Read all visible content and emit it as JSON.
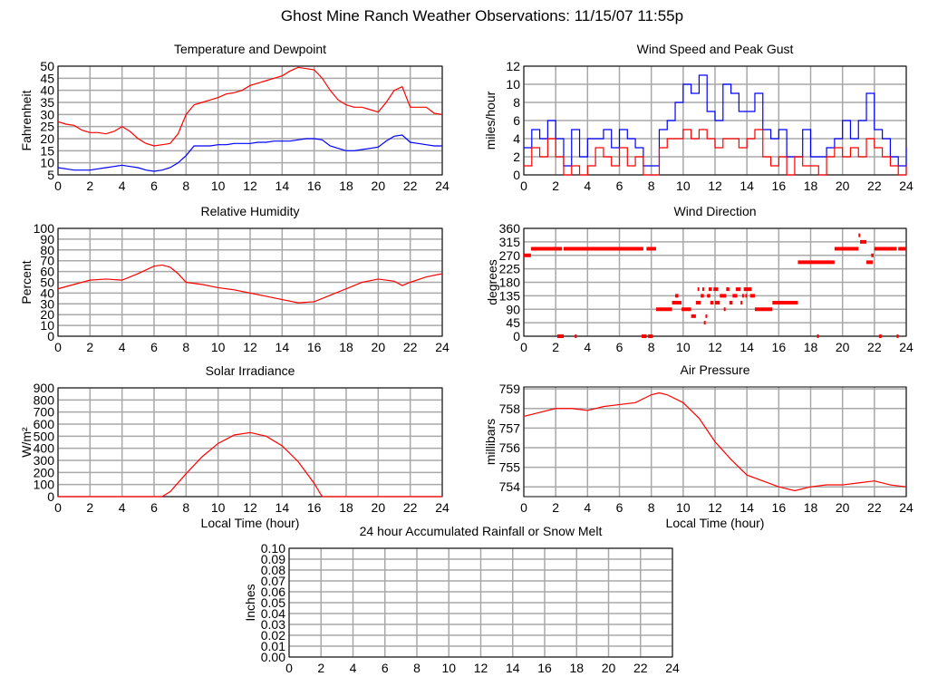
{
  "page_title": "Ghost Mine Ranch Weather Observations: 11/15/07 11:55p",
  "chart_data": [
    {
      "id": "temp",
      "type": "line",
      "title": "Temperature and Dewpoint",
      "ylabel": "Fahrenheit",
      "xlabel": "",
      "xlim": [
        0,
        24
      ],
      "ylim": [
        5,
        50
      ],
      "yticks": [
        5,
        10,
        15,
        20,
        25,
        30,
        35,
        40,
        45,
        50
      ],
      "xticks": [
        0,
        2,
        4,
        6,
        8,
        10,
        12,
        14,
        16,
        18,
        20,
        22,
        24
      ],
      "grid": true,
      "legend": "none",
      "x": [
        0,
        0.5,
        1,
        1.5,
        2,
        2.5,
        3,
        3.5,
        4,
        4.5,
        5,
        5.5,
        6,
        6.5,
        7,
        7.5,
        8,
        8.5,
        9,
        9.5,
        10,
        10.5,
        11,
        11.5,
        12,
        12.5,
        13,
        13.5,
        14,
        14.5,
        15,
        15.5,
        16,
        16.5,
        17,
        17.5,
        18,
        18.5,
        19,
        19.5,
        20,
        20.5,
        21,
        21.5,
        22,
        22.5,
        23,
        23.5,
        24
      ],
      "series": [
        {
          "color": "#ff0000",
          "step": false,
          "values": [
            27,
            26,
            25.5,
            23.5,
            22.5,
            22.5,
            22,
            23,
            25,
            23,
            20,
            18,
            17,
            17.5,
            18,
            22,
            30,
            34,
            35,
            36,
            37,
            38.5,
            39,
            40,
            42,
            43,
            44,
            45,
            46,
            48,
            49.5,
            49,
            48.5,
            45,
            40,
            36,
            34,
            33,
            33,
            32,
            31,
            35,
            40,
            41.5,
            33,
            33,
            33,
            30.5,
            30
          ]
        },
        {
          "color": "#0000ff",
          "step": false,
          "values": [
            8,
            7.5,
            7,
            7,
            7,
            7.5,
            8,
            8.5,
            9,
            8.5,
            8,
            7,
            6.5,
            7,
            8,
            10,
            13,
            17,
            17,
            17,
            17.5,
            17.5,
            18,
            18,
            18,
            18.5,
            18.5,
            19,
            19,
            19,
            19.5,
            20,
            20,
            19.5,
            17,
            16,
            15,
            15,
            15.5,
            16,
            16.5,
            19,
            21,
            21.5,
            18.5,
            18,
            17.5,
            17,
            17
          ]
        }
      ]
    },
    {
      "id": "wind",
      "type": "line",
      "title": "Wind Speed and Peak Gust",
      "ylabel": "miles/hour",
      "xlabel": "",
      "xlim": [
        0,
        24
      ],
      "ylim": [
        0,
        12
      ],
      "yticks": [
        0,
        2,
        4,
        6,
        8,
        10,
        12
      ],
      "xticks": [
        0,
        2,
        4,
        6,
        8,
        10,
        12,
        14,
        16,
        18,
        20,
        22,
        24
      ],
      "grid": true,
      "legend": "none",
      "x": [
        0,
        0.5,
        1,
        1.5,
        2,
        2.5,
        3,
        3.5,
        4,
        4.5,
        5,
        5.5,
        6,
        6.5,
        7,
        7.5,
        8,
        8.5,
        9,
        9.5,
        10,
        10.5,
        11,
        11.5,
        12,
        12.5,
        13,
        13.5,
        14,
        14.5,
        15,
        15.5,
        16,
        16.5,
        17,
        17.5,
        18,
        18.5,
        19,
        19.5,
        20,
        20.5,
        21,
        21.5,
        22,
        22.5,
        23,
        23.5,
        24
      ],
      "series": [
        {
          "color": "#0000ff",
          "step": true,
          "values": [
            3,
            5,
            4,
            6,
            4,
            1,
            5,
            2,
            4,
            4,
            5,
            3,
            5,
            4,
            3,
            1,
            1,
            5,
            6,
            8,
            10,
            9,
            11,
            7,
            6,
            10,
            9,
            7,
            7,
            9,
            5,
            4,
            5,
            2,
            2,
            5,
            2,
            2,
            3,
            4,
            6,
            4,
            6,
            9,
            5,
            4,
            2,
            1,
            3
          ]
        },
        {
          "color": "#ff0000",
          "step": true,
          "values": [
            1,
            3,
            2,
            4,
            2,
            0,
            1,
            0,
            1,
            3,
            2,
            1,
            3,
            1,
            2,
            0,
            0,
            3,
            4,
            4,
            5,
            4,
            5,
            4,
            3,
            4,
            4,
            3,
            4,
            5,
            2,
            1,
            2,
            0,
            2,
            1,
            1,
            0,
            2,
            3,
            2,
            3,
            2,
            4,
            3,
            2,
            1,
            0,
            1
          ]
        }
      ]
    },
    {
      "id": "rh",
      "type": "line",
      "title": "Relative Humidity",
      "ylabel": "Percent",
      "xlabel": "",
      "xlim": [
        0,
        24
      ],
      "ylim": [
        0,
        100
      ],
      "yticks": [
        0,
        10,
        20,
        30,
        40,
        50,
        60,
        70,
        80,
        90,
        100
      ],
      "xticks": [
        0,
        2,
        4,
        6,
        8,
        10,
        12,
        14,
        16,
        18,
        20,
        22,
        24
      ],
      "grid": true,
      "legend": "none",
      "x": [
        0,
        1,
        2,
        3,
        4,
        5,
        6,
        6.5,
        7,
        7.5,
        8,
        9,
        10,
        11,
        12,
        13,
        14,
        15,
        16,
        17,
        18,
        19,
        20,
        21,
        21.5,
        22,
        23,
        24
      ],
      "series": [
        {
          "color": "#ff0000",
          "step": false,
          "values": [
            44,
            48,
            52,
            53,
            52,
            58,
            65,
            66,
            64,
            58,
            50,
            48,
            45,
            43,
            40,
            37,
            34,
            31,
            32,
            38,
            44,
            50,
            53,
            51,
            47,
            50,
            55,
            58
          ]
        }
      ]
    },
    {
      "id": "dir",
      "type": "scatter",
      "title": "Wind Direction",
      "ylabel": "degrees",
      "xlabel": "",
      "xlim": [
        0,
        24
      ],
      "ylim": [
        0,
        360
      ],
      "yticks": [
        0,
        45,
        90,
        135,
        180,
        225,
        270,
        315,
        360
      ],
      "xticks": [
        0,
        2,
        4,
        6,
        8,
        10,
        12,
        14,
        16,
        18,
        20,
        22,
        24
      ],
      "grid": true,
      "legend": "none",
      "segments_hour_start_end_degrees": [
        [
          0,
          0.45,
          270
        ],
        [
          0.45,
          2.4,
          292
        ],
        [
          2.5,
          7.5,
          292
        ],
        [
          7.7,
          8.3,
          292
        ],
        [
          2.1,
          2.5,
          0
        ],
        [
          3.2,
          3.28,
          0
        ],
        [
          7.4,
          7.7,
          0
        ],
        [
          7.8,
          8.1,
          0
        ],
        [
          8.3,
          9.3,
          90
        ],
        [
          9.3,
          9.9,
          112
        ],
        [
          9.5,
          9.7,
          135
        ],
        [
          9.9,
          10.5,
          90
        ],
        [
          10.5,
          10.8,
          67
        ],
        [
          10.8,
          11.1,
          112
        ],
        [
          10.9,
          11.0,
          157
        ],
        [
          11.1,
          11.3,
          135
        ],
        [
          11.2,
          11.3,
          157
        ],
        [
          11.3,
          11.4,
          45
        ],
        [
          11.4,
          11.5,
          67
        ],
        [
          11.5,
          11.7,
          135
        ],
        [
          11.6,
          11.8,
          157
        ],
        [
          11.7,
          11.9,
          112
        ],
        [
          11.9,
          12.2,
          157
        ],
        [
          12.0,
          12.3,
          112
        ],
        [
          12.3,
          12.7,
          135
        ],
        [
          12.55,
          12.65,
          90
        ],
        [
          12.7,
          12.9,
          157
        ],
        [
          12.9,
          13.1,
          112
        ],
        [
          13.1,
          13.4,
          135
        ],
        [
          13.3,
          13.6,
          157
        ],
        [
          13.6,
          13.7,
          112
        ],
        [
          13.7,
          13.8,
          135
        ],
        [
          13.8,
          14.3,
          157
        ],
        [
          13.9,
          14.0,
          135
        ],
        [
          14.2,
          14.5,
          135
        ],
        [
          14.5,
          15.6,
          90
        ],
        [
          15.6,
          17.2,
          112
        ],
        [
          17.2,
          19.5,
          247
        ],
        [
          18.4,
          18.48,
          0
        ],
        [
          19.5,
          21,
          292
        ],
        [
          21,
          21.1,
          337
        ],
        [
          21.1,
          21.5,
          315
        ],
        [
          21.5,
          21.9,
          247
        ],
        [
          21.8,
          21.95,
          270
        ],
        [
          22,
          23.4,
          292
        ],
        [
          23.5,
          24,
          292
        ],
        [
          22.3,
          22.45,
          0
        ],
        [
          23.4,
          23.5,
          0
        ]
      ],
      "color": "#ff0000"
    },
    {
      "id": "solar",
      "type": "line",
      "title": "Solar Irradiance",
      "ylabel": "W/m²",
      "xlabel": "Local Time (hour)",
      "xlim": [
        0,
        24
      ],
      "ylim": [
        0,
        900
      ],
      "yticks": [
        0,
        100,
        200,
        300,
        400,
        500,
        600,
        700,
        800,
        900
      ],
      "xticks": [
        0,
        2,
        4,
        6,
        8,
        10,
        12,
        14,
        16,
        18,
        20,
        22,
        24
      ],
      "grid": true,
      "legend": "none",
      "x": [
        0,
        6.5,
        7,
        8,
        9,
        10,
        11,
        12,
        13,
        14,
        15,
        16,
        16.5,
        24
      ],
      "series": [
        {
          "color": "#ff0000",
          "step": false,
          "values": [
            0,
            0,
            40,
            190,
            330,
            440,
            510,
            530,
            500,
            420,
            290,
            110,
            0,
            0
          ]
        }
      ]
    },
    {
      "id": "press",
      "type": "line",
      "title": "Air Pressure",
      "ylabel": "millibars",
      "xlabel": "Local Time (hour)",
      "xlim": [
        0,
        24
      ],
      "ylim": [
        753.5,
        759.1
      ],
      "yticks": [
        754,
        755,
        756,
        757,
        758,
        759
      ],
      "xticks": [
        0,
        2,
        4,
        6,
        8,
        10,
        12,
        14,
        16,
        18,
        20,
        22,
        24
      ],
      "grid": true,
      "legend": "none",
      "x": [
        0,
        1,
        2,
        3,
        4,
        5,
        6,
        7,
        8,
        8.5,
        9,
        10,
        11,
        12,
        13,
        14,
        15,
        16,
        17,
        18,
        19,
        20,
        21,
        22,
        23,
        24
      ],
      "series": [
        {
          "color": "#ff0000",
          "step": false,
          "values": [
            757.6,
            757.8,
            758.0,
            758.0,
            757.9,
            758.1,
            758.2,
            758.3,
            758.7,
            758.8,
            758.7,
            758.3,
            757.5,
            756.3,
            755.4,
            754.6,
            754.3,
            754.0,
            753.8,
            754.0,
            754.1,
            754.1,
            754.2,
            754.3,
            754.1,
            754.0
          ]
        }
      ]
    },
    {
      "id": "rain",
      "type": "line",
      "title": "24 hour Accumulated Rainfall or Snow Melt",
      "ylabel": "Inches",
      "xlabel": "",
      "xlim": [
        0,
        24
      ],
      "ylim": [
        0,
        0.1
      ],
      "yticks": [
        "0.00",
        "0.01",
        "0.02",
        "0.03",
        "0.04",
        "0.05",
        "0.06",
        "0.07",
        "0.08",
        "0.09",
        "0.10"
      ],
      "xticks": [
        0,
        2,
        4,
        6,
        8,
        10,
        12,
        14,
        16,
        18,
        20,
        22,
        24
      ],
      "grid": true,
      "legend": "none",
      "x": [],
      "series": []
    }
  ]
}
